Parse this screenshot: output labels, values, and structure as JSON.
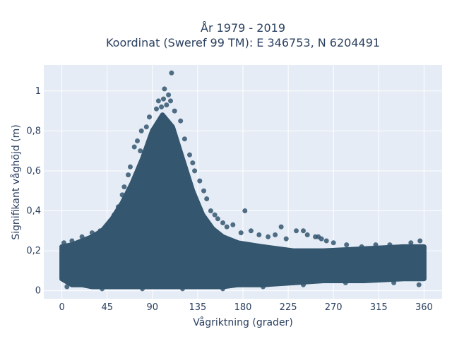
{
  "chart_data": {
    "type": "scatter",
    "title_line1": "År 1979 - 2019",
    "title_line2": "Koordinat (Sweref 99 TM): E 346753, N 6204491",
    "xlabel": "Vågriktning (grader)",
    "ylabel": "Signifikant våghöjd (m)",
    "xlim": [
      -18,
      378
    ],
    "ylim": [
      -0.04,
      1.13
    ],
    "x_ticks": [
      0,
      45,
      90,
      135,
      180,
      225,
      270,
      315,
      360
    ],
    "x_tick_labels": [
      "0",
      "45",
      "90",
      "135",
      "180",
      "225",
      "270",
      "315",
      "360"
    ],
    "y_ticks": [
      0,
      0.2,
      0.4,
      0.6,
      0.8,
      1
    ],
    "y_tick_labels": [
      "0",
      "0,2",
      "0,4",
      "0,6",
      "0,8",
      "1"
    ],
    "grid": true,
    "marker_color": "#34566e",
    "plot_bg": "#e5ecf6",
    "envelope": [
      {
        "x": 0,
        "lo": 0.06,
        "hi": 0.22
      },
      {
        "x": 10,
        "lo": 0.03,
        "hi": 0.23
      },
      {
        "x": 20,
        "lo": 0.03,
        "hi": 0.25
      },
      {
        "x": 30,
        "lo": 0.02,
        "hi": 0.27
      },
      {
        "x": 40,
        "lo": 0.02,
        "hi": 0.3
      },
      {
        "x": 50,
        "lo": 0.02,
        "hi": 0.36
      },
      {
        "x": 60,
        "lo": 0.02,
        "hi": 0.44
      },
      {
        "x": 70,
        "lo": 0.02,
        "hi": 0.54
      },
      {
        "x": 80,
        "lo": 0.02,
        "hi": 0.66
      },
      {
        "x": 90,
        "lo": 0.02,
        "hi": 0.8
      },
      {
        "x": 100,
        "lo": 0.02,
        "hi": 0.88
      },
      {
        "x": 110,
        "lo": 0.02,
        "hi": 0.82
      },
      {
        "x": 120,
        "lo": 0.02,
        "hi": 0.66
      },
      {
        "x": 130,
        "lo": 0.02,
        "hi": 0.5
      },
      {
        "x": 140,
        "lo": 0.02,
        "hi": 0.38
      },
      {
        "x": 150,
        "lo": 0.02,
        "hi": 0.31
      },
      {
        "x": 160,
        "lo": 0.02,
        "hi": 0.27
      },
      {
        "x": 175,
        "lo": 0.03,
        "hi": 0.24
      },
      {
        "x": 200,
        "lo": 0.03,
        "hi": 0.22
      },
      {
        "x": 230,
        "lo": 0.04,
        "hi": 0.2
      },
      {
        "x": 260,
        "lo": 0.05,
        "hi": 0.2
      },
      {
        "x": 300,
        "lo": 0.05,
        "hi": 0.21
      },
      {
        "x": 340,
        "lo": 0.06,
        "hi": 0.22
      },
      {
        "x": 360,
        "lo": 0.06,
        "hi": 0.22
      }
    ],
    "points": [
      [
        109,
        1.09
      ],
      [
        102,
        1.01
      ],
      [
        106,
        0.98
      ],
      [
        101,
        0.96
      ],
      [
        96,
        0.95
      ],
      [
        104,
        0.93
      ],
      [
        99,
        0.92
      ],
      [
        108,
        0.95
      ],
      [
        112,
        0.9
      ],
      [
        94,
        0.91
      ],
      [
        87,
        0.87
      ],
      [
        118,
        0.85
      ],
      [
        84,
        0.82
      ],
      [
        122,
        0.76
      ],
      [
        79,
        0.8
      ],
      [
        75,
        0.75
      ],
      [
        72,
        0.72
      ],
      [
        78,
        0.7
      ],
      [
        127,
        0.68
      ],
      [
        130,
        0.64
      ],
      [
        68,
        0.62
      ],
      [
        66,
        0.58
      ],
      [
        132,
        0.6
      ],
      [
        137,
        0.55
      ],
      [
        62,
        0.52
      ],
      [
        141,
        0.5
      ],
      [
        60,
        0.48
      ],
      [
        144,
        0.46
      ],
      [
        56,
        0.42
      ],
      [
        148,
        0.4
      ],
      [
        52,
        0.38
      ],
      [
        152,
        0.38
      ],
      [
        48,
        0.35
      ],
      [
        155,
        0.36
      ],
      [
        160,
        0.34
      ],
      [
        164,
        0.32
      ],
      [
        170,
        0.33
      ],
      [
        178,
        0.29
      ],
      [
        182,
        0.4
      ],
      [
        188,
        0.3
      ],
      [
        196,
        0.28
      ],
      [
        205,
        0.27
      ],
      [
        212,
        0.28
      ],
      [
        218,
        0.32
      ],
      [
        223,
        0.26
      ],
      [
        233,
        0.3
      ],
      [
        240,
        0.3
      ],
      [
        244,
        0.28
      ],
      [
        252,
        0.27
      ],
      [
        255,
        0.27
      ],
      [
        258,
        0.26
      ],
      [
        263,
        0.25
      ],
      [
        270,
        0.24
      ],
      [
        283,
        0.23
      ],
      [
        298,
        0.22
      ],
      [
        312,
        0.23
      ],
      [
        326,
        0.23
      ],
      [
        338,
        0.22
      ],
      [
        347,
        0.24
      ],
      [
        356,
        0.25
      ],
      [
        38,
        0.3
      ],
      [
        30,
        0.29
      ],
      [
        20,
        0.27
      ],
      [
        10,
        0.25
      ],
      [
        2,
        0.24
      ],
      [
        5,
        0.02
      ],
      [
        40,
        0.01
      ],
      [
        80,
        0.01
      ],
      [
        120,
        0.01
      ],
      [
        160,
        0.01
      ],
      [
        200,
        0.02
      ],
      [
        240,
        0.03
      ],
      [
        282,
        0.04
      ],
      [
        330,
        0.04
      ],
      [
        355,
        0.03
      ]
    ]
  }
}
